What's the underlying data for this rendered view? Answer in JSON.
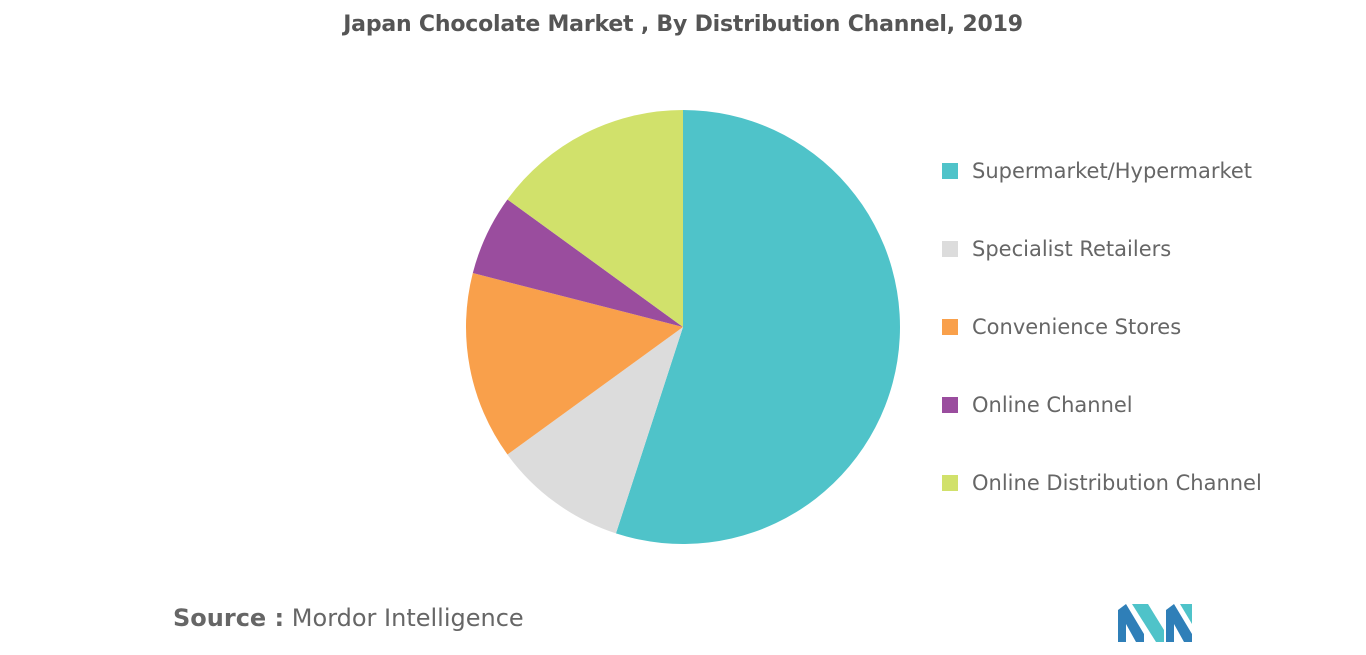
{
  "chart_data": {
    "type": "pie",
    "title": "Japan Chocolate Market , By Distribution Channel, 2019",
    "slices": [
      {
        "label": "Supermarket/Hypermarket",
        "value": 55,
        "color": "#4fc3c9"
      },
      {
        "label": "Specialist Retailers",
        "value": 10,
        "color": "#dcdcdc"
      },
      {
        "label": "Convenience Stores",
        "value": 14,
        "color": "#f9a04b"
      },
      {
        "label": "Online Channel",
        "value": 6,
        "color": "#9a4d9e"
      },
      {
        "label": "Online Distribution Channel",
        "value": 15,
        "color": "#d1e16b"
      }
    ],
    "legend_position": "right"
  },
  "source": {
    "label": "Source :",
    "text": "Mordor Intelligence"
  },
  "logo": {
    "icon": "mordor-intelligence-logo",
    "colors": [
      "#2f7fb8",
      "#4fc3c9"
    ]
  }
}
